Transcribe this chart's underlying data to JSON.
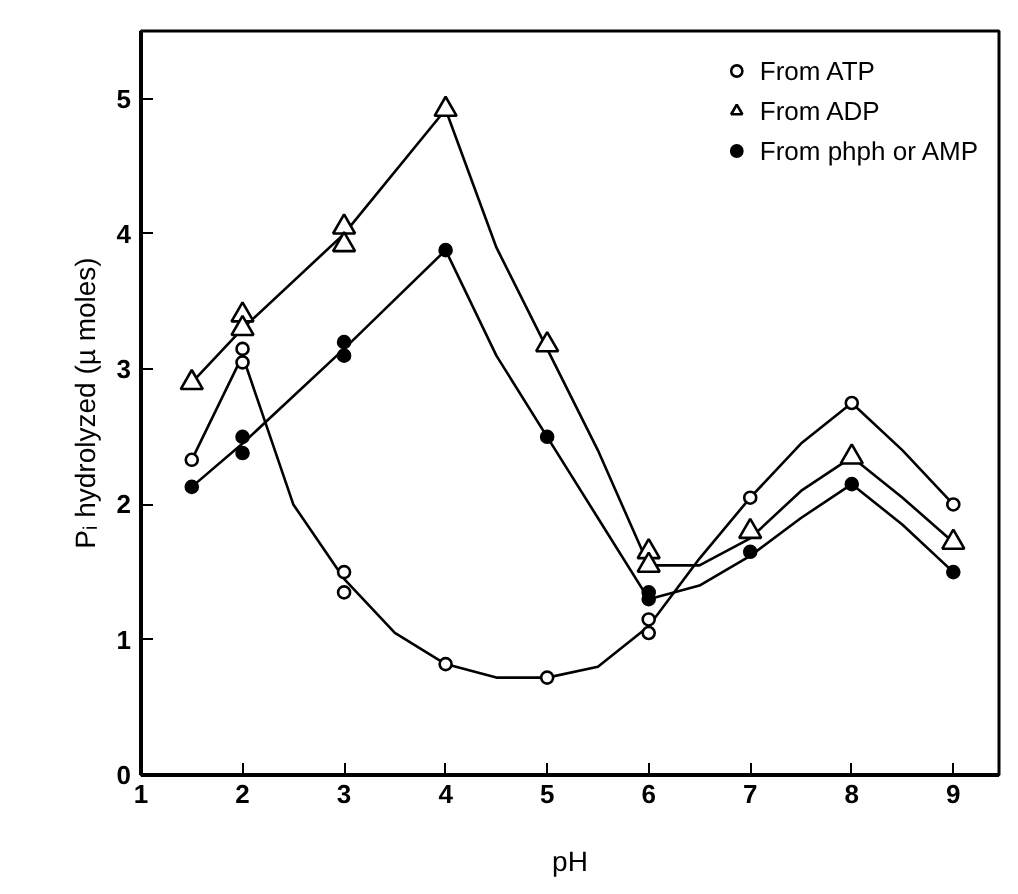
{
  "chart_data": {
    "type": "scatter",
    "xlabel": "pH",
    "ylabel": "Pᵢ hydrolyzed (µ moles)",
    "xlim": [
      1,
      9.45
    ],
    "ylim": [
      0,
      5.5
    ],
    "xticks": [
      1,
      2,
      3,
      4,
      5,
      6,
      7,
      8,
      9
    ],
    "yticks": [
      0,
      1,
      2,
      3,
      4,
      5
    ],
    "grid": false,
    "legend": "top right",
    "series": [
      {
        "name": "From ATP",
        "marker": "circle open",
        "color": "#000000",
        "x": [
          1.5,
          2,
          2,
          3,
          3,
          4,
          5,
          6,
          6,
          7,
          8,
          9
        ],
        "values": [
          2.33,
          3.15,
          3.05,
          1.5,
          1.35,
          0.82,
          0.72,
          1.15,
          1.05,
          2.05,
          2.75,
          2.0
        ]
      },
      {
        "name": "From ADP",
        "marker": "triangle open",
        "color": "#000000",
        "x": [
          1.5,
          2,
          2,
          3,
          3,
          4,
          5,
          6,
          6,
          7,
          8,
          9
        ],
        "values": [
          2.9,
          3.4,
          3.3,
          4.05,
          3.92,
          4.92,
          3.18,
          1.65,
          1.55,
          1.8,
          2.35,
          1.72
        ]
      },
      {
        "name": "From phph or AMP",
        "marker": "circle",
        "color": "#000000",
        "x": [
          1.5,
          2,
          2,
          3,
          3,
          4,
          5,
          6,
          6,
          7,
          8,
          9
        ],
        "values": [
          2.13,
          2.5,
          2.38,
          3.2,
          3.1,
          3.88,
          2.5,
          1.35,
          1.3,
          1.65,
          2.15,
          1.5
        ]
      },
      {
        "type": "line",
        "marker": "none",
        "line_style": "solid",
        "color": "#000000",
        "x": [
          1.5,
          2,
          2.5,
          3,
          3.5,
          4,
          4.5,
          5,
          5.5,
          6,
          6.5,
          7,
          7.5,
          8,
          8.5,
          9
        ],
        "values": [
          2.33,
          3.1,
          2.0,
          1.45,
          1.05,
          0.82,
          0.72,
          0.72,
          0.8,
          1.1,
          1.6,
          2.05,
          2.45,
          2.75,
          2.4,
          2.0
        ]
      },
      {
        "type": "line",
        "marker": "none",
        "line_style": "solid",
        "color": "#000000",
        "x": [
          1.5,
          2,
          3,
          4,
          4.5,
          5,
          5.5,
          6,
          6.5,
          7,
          7.5,
          8,
          8.5,
          9
        ],
        "values": [
          2.9,
          3.3,
          4.0,
          4.92,
          3.9,
          3.15,
          2.4,
          1.55,
          1.55,
          1.75,
          2.1,
          2.35,
          2.05,
          1.72
        ]
      },
      {
        "type": "line",
        "marker": "none",
        "line_style": "solid",
        "color": "#000000",
        "x": [
          1.5,
          2,
          3,
          4,
          4.5,
          5,
          5.5,
          6,
          6.5,
          7,
          7.5,
          8,
          8.5,
          9
        ],
        "values": [
          2.13,
          2.45,
          3.15,
          3.88,
          3.1,
          2.5,
          1.9,
          1.3,
          1.4,
          1.62,
          1.9,
          2.15,
          1.85,
          1.5
        ]
      }
    ]
  }
}
